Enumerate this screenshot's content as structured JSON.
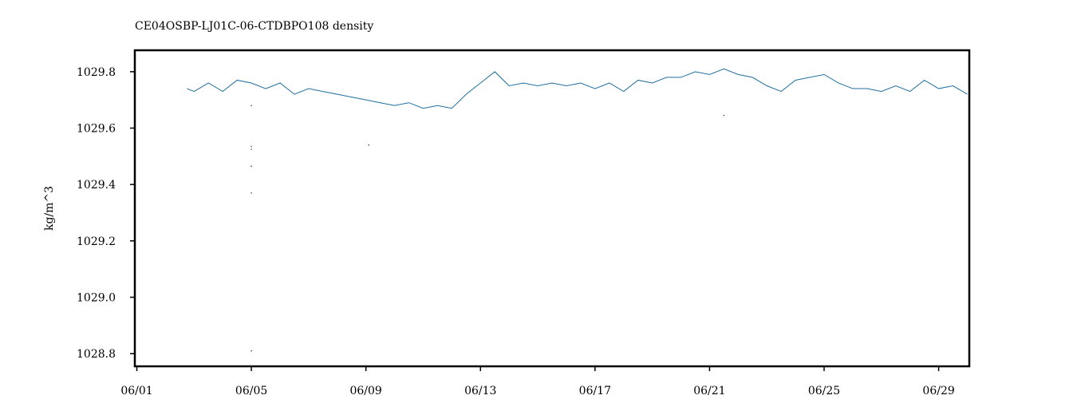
{
  "chart_data": {
    "type": "line",
    "title": "CE04OSBP-LJ01C-06-CTDBPO108 density",
    "ylabel": "kg/m^3",
    "xlim": [
      0.93,
      30.07
    ],
    "xticks": [
      {
        "value": 1,
        "label": "06/01"
      },
      {
        "value": 5,
        "label": "06/05"
      },
      {
        "value": 9,
        "label": "06/09"
      },
      {
        "value": 13,
        "label": "06/13"
      },
      {
        "value": 17,
        "label": "06/17"
      },
      {
        "value": 21,
        "label": "06/21"
      },
      {
        "value": 25,
        "label": "06/25"
      },
      {
        "value": 29,
        "label": "06/29"
      }
    ],
    "ylim": [
      1028.755,
      1029.876
    ],
    "yticks": [
      1028.8,
      {
        "value": 1029.0,
        "label": "1029.0"
      },
      1029.2,
      1029.4,
      1029.6,
      1029.8
    ],
    "grid": false,
    "series": [
      {
        "color": "#1f6f9f",
        "mode": "lines",
        "x": [
          2.75,
          3.0,
          3.5,
          4.0,
          4.5,
          5.0,
          5.5,
          6.0,
          6.5,
          7.0,
          7.5,
          8.0,
          8.5,
          9.0,
          9.5,
          10.0,
          10.5,
          11.0,
          11.5,
          12.0,
          12.5,
          13.0,
          13.5,
          14.0,
          14.5,
          15.0,
          15.5,
          16.0,
          16.5,
          17.0,
          17.5,
          18.0,
          18.5,
          19.0,
          19.5,
          20.0,
          20.5,
          21.0,
          21.5,
          22.0,
          22.5,
          23.0,
          23.5,
          24.0,
          24.5,
          25.0,
          25.5,
          26.0,
          26.5,
          27.0,
          27.5,
          28.0,
          28.5,
          29.0,
          29.5,
          30.0
        ],
        "values": [
          1029.74,
          1029.73,
          1029.76,
          1029.73,
          1029.77,
          1029.76,
          1029.74,
          1029.76,
          1029.72,
          1029.74,
          1029.73,
          1029.72,
          1029.71,
          1029.7,
          1029.69,
          1029.68,
          1029.69,
          1029.67,
          1029.68,
          1029.67,
          1029.72,
          1029.76,
          1029.8,
          1029.75,
          1029.76,
          1029.75,
          1029.76,
          1029.75,
          1029.76,
          1029.74,
          1029.76,
          1029.73,
          1029.77,
          1029.76,
          1029.78,
          1029.78,
          1029.8,
          1029.79,
          1029.81,
          1029.79,
          1029.78,
          1029.75,
          1029.73,
          1029.77,
          1029.78,
          1029.79,
          1029.76,
          1029.74,
          1029.74,
          1029.73,
          1029.75,
          1029.73,
          1029.77,
          1029.74,
          1029.75,
          1029.72
        ]
      },
      {
        "color": "#444444",
        "mode": "markers",
        "x": [
          5.0,
          5.0,
          5.0,
          5.0,
          5.0,
          5.0,
          9.1,
          21.5
        ],
        "values": [
          1029.68,
          1029.535,
          1029.525,
          1029.465,
          1029.37,
          1028.81,
          1029.54,
          1029.645
        ]
      }
    ]
  }
}
